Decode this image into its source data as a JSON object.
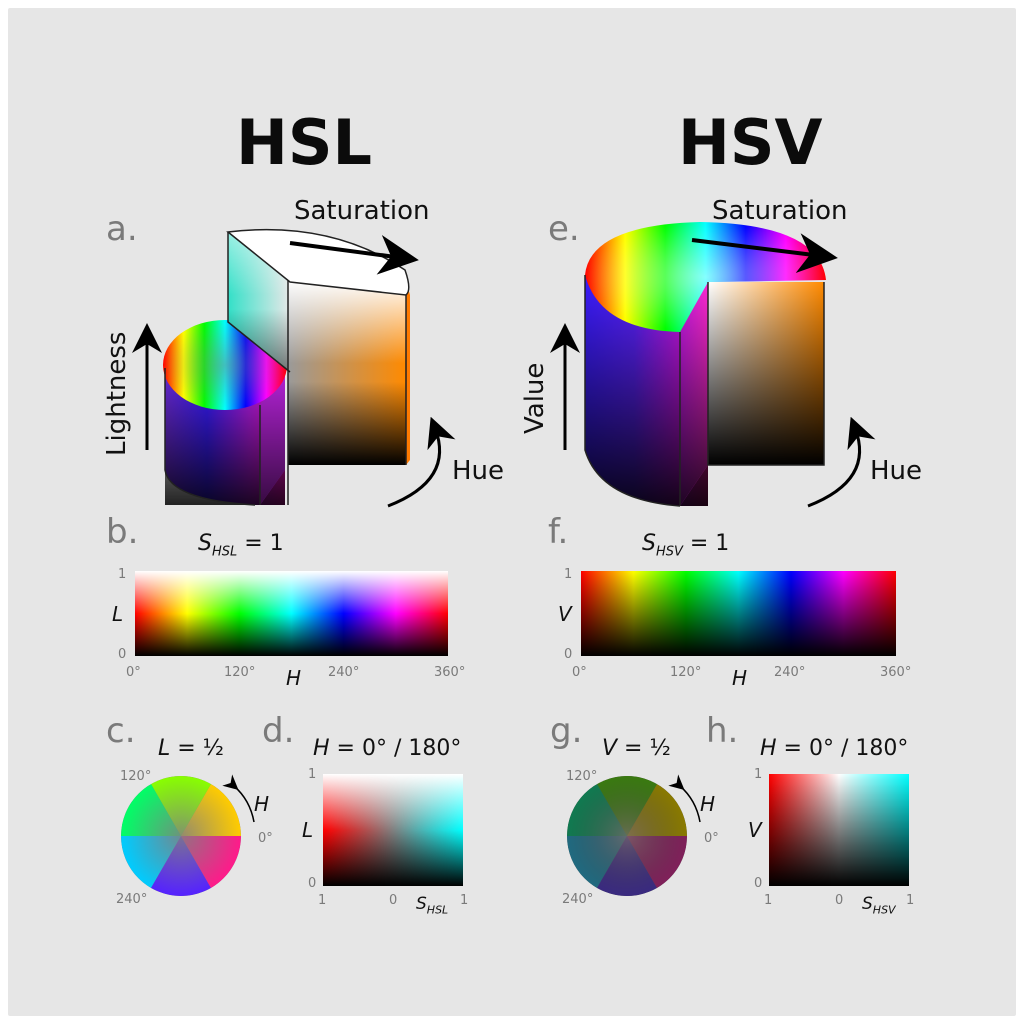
{
  "colors": {
    "background": "#e6e6e6",
    "panel_border": "#ffffff",
    "panel_letter": "#7a7a7a",
    "tick_label": "#7a7a7a",
    "text": "#111111"
  },
  "hsl": {
    "title": "HSL",
    "a": {
      "letter": "a.",
      "saturation": "Saturation",
      "lightness": "Lightness",
      "hue": "Hue"
    },
    "b": {
      "letter": "b.",
      "eq_var": "S",
      "eq_sub": "HSL",
      "eq_val": " = 1",
      "y_label": "L",
      "x_label": "H",
      "y_ticks": [
        "1",
        "0"
      ],
      "x_ticks": [
        "0°",
        "120°",
        "240°",
        "360°"
      ]
    },
    "c": {
      "letter": "c.",
      "eq_var": "L",
      "eq_val": " = ½",
      "angle_120": "120°",
      "angle_240": "240°",
      "angle_0": "0°",
      "h_label": "H"
    },
    "d": {
      "letter": "d.",
      "eq_var": "H",
      "eq_val": " = 0° / 180°",
      "y_label": "L",
      "y_ticks": [
        "1",
        "0"
      ],
      "x_ticks": [
        "1",
        "0",
        "1"
      ],
      "x_var": "S",
      "x_sub": "HSL"
    }
  },
  "hsv": {
    "title": "HSV",
    "e": {
      "letter": "e.",
      "saturation": "Saturation",
      "value": "Value",
      "hue": "Hue"
    },
    "f": {
      "letter": "f.",
      "eq_var": "S",
      "eq_sub": "HSV",
      "eq_val": " = 1",
      "y_label": "V",
      "x_label": "H",
      "y_ticks": [
        "1",
        "0"
      ],
      "x_ticks": [
        "0°",
        "120°",
        "240°",
        "360°"
      ]
    },
    "g": {
      "letter": "g.",
      "eq_var": "V",
      "eq_val": " = ½",
      "angle_120": "120°",
      "angle_240": "240°",
      "angle_0": "0°",
      "h_label": "H"
    },
    "h": {
      "letter": "h.",
      "eq_var": "H",
      "eq_val": " = 0° / 180°",
      "y_label": "V",
      "y_ticks": [
        "1",
        "0"
      ],
      "x_ticks": [
        "1",
        "0",
        "1"
      ],
      "x_var": "S",
      "x_sub": "HSV"
    }
  }
}
